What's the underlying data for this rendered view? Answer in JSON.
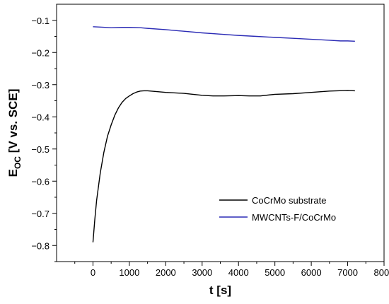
{
  "chart_data": {
    "type": "line",
    "xlabel": "t [s]",
    "ylabel_main": "E",
    "ylabel_sub": "OC",
    "ylabel_rest": " [V vs. SCE]",
    "xlim": [
      -1000,
      8000
    ],
    "ylim": [
      -0.85,
      -0.05
    ],
    "xticks": [
      0,
      1000,
      2000,
      3000,
      4000,
      5000,
      6000,
      7000,
      8000
    ],
    "yticks": [
      -0.8,
      -0.7,
      -0.6,
      -0.5,
      -0.4,
      -0.3,
      -0.2,
      -0.1
    ],
    "grid": false,
    "legend_position": "bottom-right",
    "series": [
      {
        "name": "CoCrMo substrate",
        "color": "#000000",
        "x": [
          0,
          50,
          100,
          200,
          300,
          400,
          500,
          600,
          700,
          800,
          900,
          1000,
          1100,
          1200,
          1300,
          1400,
          1500,
          1700,
          2000,
          2500,
          3000,
          3300,
          3600,
          4000,
          4300,
          4600,
          5000,
          5500,
          6000,
          6500,
          7000,
          7200
        ],
        "y": [
          -0.79,
          -0.72,
          -0.66,
          -0.575,
          -0.51,
          -0.46,
          -0.425,
          -0.395,
          -0.372,
          -0.355,
          -0.343,
          -0.335,
          -0.328,
          -0.323,
          -0.32,
          -0.319,
          -0.319,
          -0.321,
          -0.324,
          -0.327,
          -0.333,
          -0.335,
          -0.335,
          -0.334,
          -0.335,
          -0.335,
          -0.33,
          -0.328,
          -0.324,
          -0.32,
          -0.318,
          -0.319
        ]
      },
      {
        "name": "MWCNTs-F/CoCrMo",
        "color": "#2b2bb5",
        "x": [
          0,
          200,
          500,
          800,
          1000,
          1300,
          1500,
          2000,
          2500,
          3000,
          3500,
          4000,
          4500,
          5000,
          5500,
          6000,
          6500,
          6800,
          7000,
          7200
        ],
        "y": [
          -0.12,
          -0.121,
          -0.123,
          -0.122,
          -0.122,
          -0.123,
          -0.125,
          -0.129,
          -0.134,
          -0.139,
          -0.143,
          -0.147,
          -0.15,
          -0.153,
          -0.156,
          -0.159,
          -0.162,
          -0.164,
          -0.164,
          -0.165
        ]
      }
    ]
  }
}
